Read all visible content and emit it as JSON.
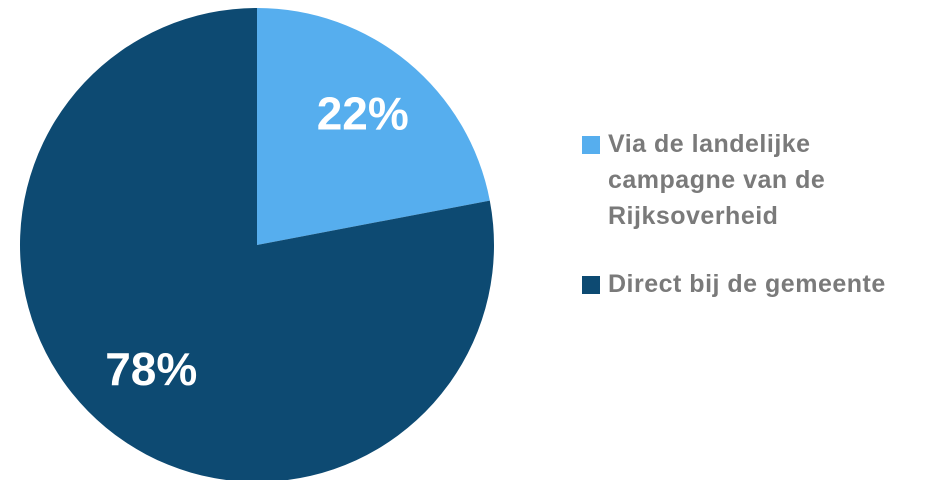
{
  "chart_data": {
    "type": "pie",
    "categories": [
      "Via de landelijke campagne van de Rijksoverheid",
      "Direct bij de gemeente"
    ],
    "values": [
      22,
      78
    ],
    "value_labels": [
      "22%",
      "78%"
    ],
    "colors": [
      "#56aeee",
      "#0d4a72"
    ]
  }
}
